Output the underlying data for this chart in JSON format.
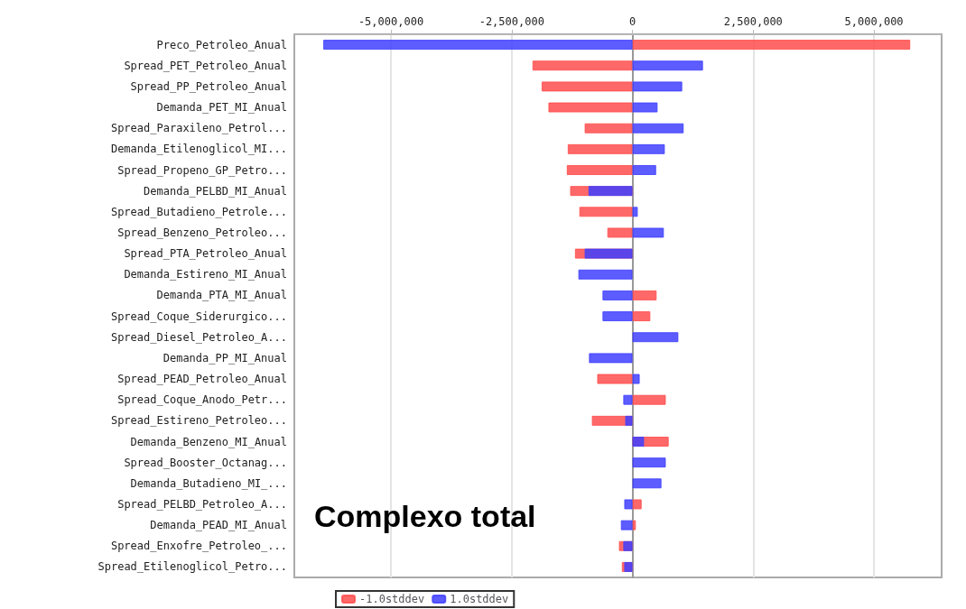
{
  "chart_data": {
    "type": "bar",
    "orientation": "horizontal",
    "categories": [
      "Preco_Petroleo_Anual",
      "Spread_PET_Petroleo_Anual",
      "Spread_PP_Petroleo_Anual",
      "Demanda_PET_MI_Anual",
      "Spread_Paraxileno_Petrol...",
      "Demanda_Etilenoglicol_MI...",
      "Spread_Propeno_GP_Petro...",
      "Demanda_PELBD_MI_Anual",
      "Spread_Butadieno_Petrole...",
      "Spread_Benzeno_Petroleo...",
      "Spread_PTA_Petroleo_Anual",
      "Demanda_Estireno_MI_Anual",
      "Demanda_PTA_MI_Anual",
      "Spread_Coque_Siderurgico...",
      "Spread_Diesel_Petroleo_A...",
      "Demanda_PP_MI_Anual",
      "Spread_PEAD_Petroleo_Anual",
      "Spread_Coque_Anodo_Petr...",
      "Spread_Estireno_Petroleo...",
      "Demanda_Benzeno_MI_Anual",
      "Spread_Booster_Octanag...",
      "Demanda_Butadieno_MI_...",
      "Spread_PELBD_Petroleo_A...",
      "Demanda_PEAD_MI_Anual",
      "Spread_Enxofre_Petroleo_...",
      "Spread_Etilenoglicol_Petro..."
    ],
    "series": [
      {
        "name": "-1.0stddev",
        "color": "#ff4d4d",
        "values": [
          5750000,
          -2070000,
          -1880000,
          -1740000,
          -990000,
          -1340000,
          -1360000,
          -1290000,
          -1100000,
          -520000,
          -1190000,
          null,
          500000,
          370000,
          null,
          null,
          -730000,
          690000,
          -840000,
          750000,
          null,
          null,
          190000,
          70000,
          -280000,
          -220000
        ]
      },
      {
        "name": "1.0stddev",
        "color": "#4040ff",
        "values": [
          -6400000,
          1460000,
          1030000,
          520000,
          1060000,
          670000,
          490000,
          -910000,
          110000,
          650000,
          -990000,
          -1120000,
          -620000,
          -620000,
          950000,
          -900000,
          150000,
          -190000,
          -150000,
          240000,
          690000,
          600000,
          -170000,
          -240000,
          -190000,
          -170000
        ]
      }
    ],
    "xlim": [
      -7000000,
      6400000
    ],
    "xticks": [
      {
        "value": -5000000,
        "label": "-5,000,000"
      },
      {
        "value": -2500000,
        "label": "-2,500,000"
      },
      0,
      {
        "value": 2500000,
        "label": "2,500,000"
      },
      {
        "value": 5000000,
        "label": "5,000,000"
      }
    ],
    "grid": "x",
    "legend": "bottom left",
    "annotations": [
      "Complexo total"
    ]
  }
}
